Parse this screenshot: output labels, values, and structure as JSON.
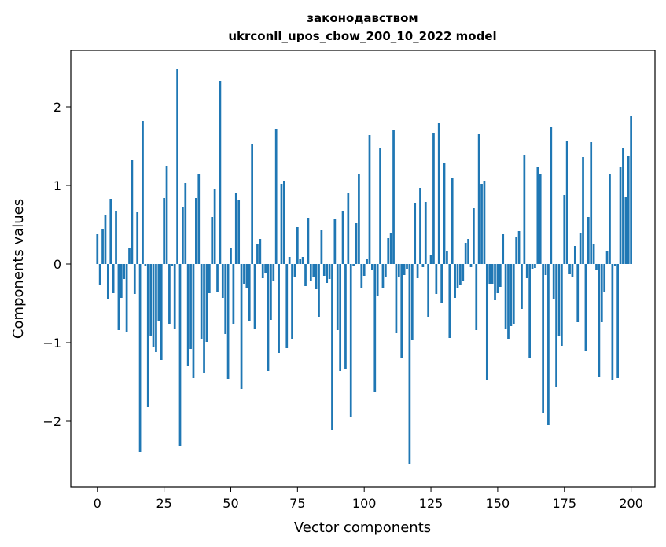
{
  "chart_data": {
    "type": "bar",
    "title_line1": "законодавством",
    "title_line2": "ukrconll_upos_cbow_200_10_2022 model",
    "xlabel": "Vector components",
    "ylabel": "Components values",
    "xlim": [
      -9.95,
      208.95
    ],
    "ylim": [
      -2.84,
      2.72
    ],
    "xticks": [
      0,
      25,
      50,
      75,
      100,
      125,
      150,
      175,
      200
    ],
    "yticks": [
      -2,
      -1,
      0,
      1,
      2
    ],
    "ytick_labels": [
      "−2",
      "−1",
      "0",
      "1",
      "2"
    ],
    "bar_color": "#1f77b4",
    "values": [
      0.38,
      -0.27,
      0.44,
      0.62,
      -0.44,
      0.83,
      -0.37,
      0.68,
      -0.84,
      -0.43,
      -0.19,
      -0.87,
      0.21,
      1.33,
      -0.38,
      0.66,
      -2.39,
      1.82,
      -0.02,
      -1.82,
      -0.92,
      -1.06,
      -1.12,
      -0.73,
      -1.22,
      0.84,
      1.25,
      -0.76,
      -0.03,
      -0.82,
      2.48,
      -2.32,
      0.73,
      1.03,
      -1.3,
      -1.08,
      -1.45,
      0.84,
      1.15,
      -0.95,
      -1.38,
      -0.99,
      -0.37,
      0.6,
      0.95,
      -0.35,
      2.33,
      -0.43,
      -0.89,
      -1.46,
      0.2,
      -0.76,
      0.91,
      0.82,
      -1.59,
      -0.25,
      -0.3,
      -0.72,
      1.53,
      -0.82,
      0.26,
      0.32,
      -0.18,
      -0.12,
      -1.36,
      -0.71,
      -0.21,
      1.72,
      -1.13,
      1.02,
      1.06,
      -1.07,
      0.09,
      -0.95,
      -0.16,
      0.47,
      0.07,
      0.09,
      -0.28,
      0.59,
      -0.21,
      -0.17,
      -0.32,
      -0.67,
      0.43,
      -0.15,
      -0.24,
      -0.19,
      -2.11,
      0.57,
      -0.84,
      -1.36,
      0.68,
      -1.34,
      0.91,
      -1.94,
      -0.03,
      0.52,
      1.15,
      -0.3,
      -0.15,
      0.07,
      1.64,
      -0.08,
      -1.63,
      -0.4,
      1.48,
      -0.3,
      -0.16,
      0.33,
      0.4,
      1.71,
      -0.88,
      -0.17,
      -1.2,
      -0.14,
      -0.06,
      -2.55,
      -0.96,
      0.78,
      -0.18,
      0.97,
      -0.04,
      0.79,
      -0.67,
      0.11,
      1.67,
      -0.38,
      1.79,
      -0.5,
      1.29,
      0.16,
      -0.94,
      1.1,
      -0.43,
      -0.31,
      -0.27,
      -0.21,
      0.27,
      0.32,
      -0.04,
      0.71,
      -0.84,
      1.65,
      1.02,
      1.06,
      -1.48,
      -0.25,
      -0.25,
      -0.46,
      -0.37,
      -0.29,
      0.38,
      -0.82,
      -0.95,
      -0.79,
      -0.76,
      0.35,
      0.42,
      -0.57,
      1.39,
      -0.18,
      -1.19,
      -0.06,
      -0.05,
      1.24,
      1.15,
      -1.89,
      -0.14,
      -2.05,
      1.74,
      -0.45,
      -1.57,
      -0.92,
      -1.04,
      0.88,
      1.56,
      -0.13,
      -0.16,
      0.23,
      -0.74,
      0.4,
      1.36,
      -1.11,
      0.6,
      1.55,
      0.25,
      -0.08,
      -1.44,
      -0.74,
      -0.35,
      0.17,
      1.14,
      -1.47,
      -0.03,
      -1.45,
      1.23,
      1.48,
      0.85,
      1.38,
      1.89
    ]
  }
}
